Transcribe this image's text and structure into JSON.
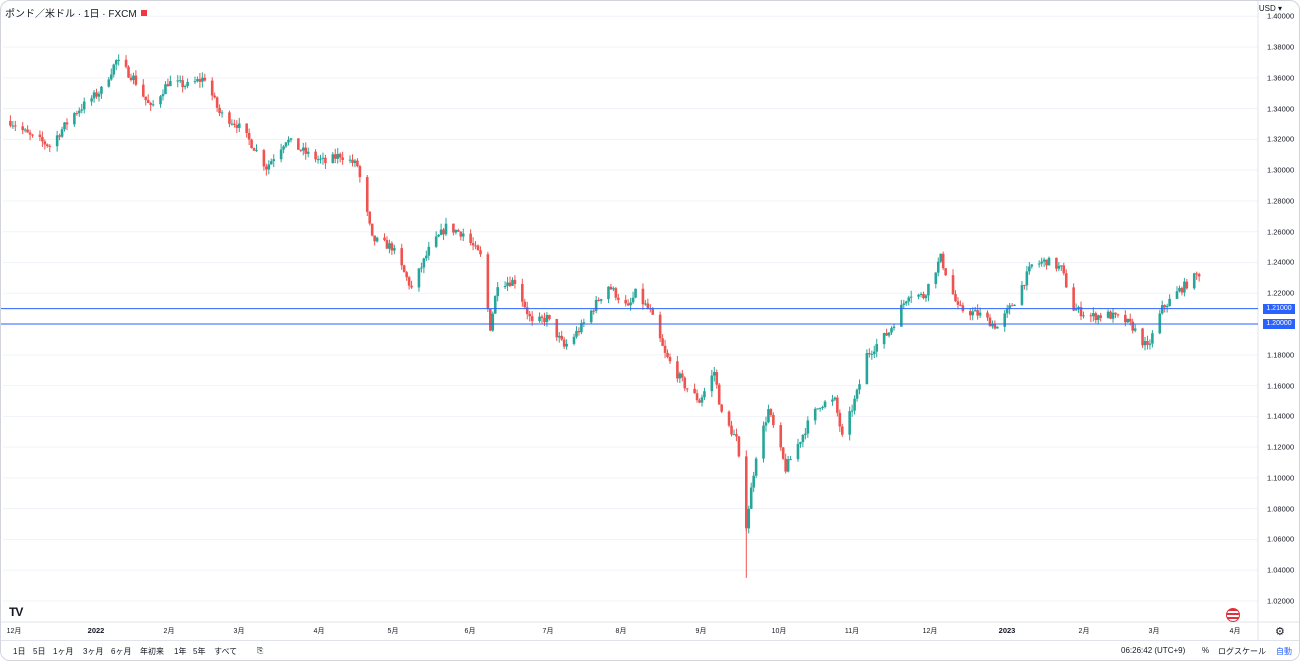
{
  "header": {
    "symbol_title": "ポンド／米ドル · 1日 · FXCM",
    "currency": "USD"
  },
  "toolbar": {
    "ranges": [
      "1日",
      "5日",
      "1ヶ月",
      "3ヶ月",
      "6ヶ月",
      "年初来",
      "1年",
      "5年",
      "すべて"
    ],
    "compare_icon": "calendar-range-icon",
    "time": "06:26:42 (UTC+9)",
    "percent": "%",
    "log_scale": "ログスケール",
    "auto": "自動"
  },
  "brand": {
    "logo": "TV"
  },
  "colors": {
    "up": "#26a69a",
    "down": "#ef5350",
    "hline": "#2962ff",
    "grid": "#f0f3fa"
  },
  "chart_data": {
    "type": "candlestick",
    "title": "ポンド／米ドル · 1日 · FXCM",
    "y_axis": {
      "ticks": [
        "1.40000",
        "1.38000",
        "1.36000",
        "1.34000",
        "1.32000",
        "1.30000",
        "1.28000",
        "1.26000",
        "1.24000",
        "1.22000",
        "1.20000",
        "1.18000",
        "1.16000",
        "1.14000",
        "1.12000",
        "1.10000",
        "1.08000",
        "1.06000",
        "1.04000",
        "1.02000"
      ],
      "range": [
        1.007,
        1.408
      ]
    },
    "x_axis": {
      "ticks": [
        "12月",
        "2022",
        "2月",
        "3月",
        "4月",
        "5月",
        "6月",
        "7月",
        "8月",
        "9月",
        "10月",
        "11月",
        "12月",
        "2023",
        "2月",
        "3月",
        "4月"
      ]
    },
    "horizontal_lines": [
      {
        "label": "1.21000",
        "value": 1.21
      },
      {
        "label": "1.20000",
        "value": 1.2
      }
    ],
    "anchors": [
      [
        "2021-12-01",
        1.332
      ],
      [
        "2021-12-09",
        1.322
      ],
      [
        "2021-12-17",
        1.316
      ],
      [
        "2021-12-27",
        1.337
      ],
      [
        "2022-01-07",
        1.352
      ],
      [
        "2022-01-13",
        1.371
      ],
      [
        "2022-01-20",
        1.36
      ],
      [
        "2022-01-27",
        1.34
      ],
      [
        "2022-02-03",
        1.357
      ],
      [
        "2022-02-11",
        1.355
      ],
      [
        "2022-02-18",
        1.36
      ],
      [
        "2022-02-24",
        1.337
      ],
      [
        "2022-03-03",
        1.33
      ],
      [
        "2022-03-10",
        1.315
      ],
      [
        "2022-03-15",
        1.302
      ],
      [
        "2022-03-23",
        1.32
      ],
      [
        "2022-03-31",
        1.311
      ],
      [
        "2022-04-08",
        1.305
      ],
      [
        "2022-04-14",
        1.31
      ],
      [
        "2022-04-21",
        1.303
      ],
      [
        "2022-04-27",
        1.255
      ],
      [
        "2022-05-05",
        1.25
      ],
      [
        "2022-05-13",
        1.223
      ],
      [
        "2022-05-20",
        1.248
      ],
      [
        "2022-05-27",
        1.263
      ],
      [
        "2022-06-03",
        1.259
      ],
      [
        "2022-06-10",
        1.244
      ],
      [
        "2022-06-14",
        1.198
      ],
      [
        "2022-06-17",
        1.227
      ],
      [
        "2022-06-24",
        1.228
      ],
      [
        "2022-07-01",
        1.2
      ],
      [
        "2022-07-07",
        1.204
      ],
      [
        "2022-07-14",
        1.185
      ],
      [
        "2022-07-21",
        1.198
      ],
      [
        "2022-07-28",
        1.216
      ],
      [
        "2022-08-01",
        1.225
      ],
      [
        "2022-08-09",
        1.21
      ],
      [
        "2022-08-12",
        1.22
      ],
      [
        "2022-08-18",
        1.208
      ],
      [
        "2022-08-24",
        1.18
      ],
      [
        "2022-09-01",
        1.16
      ],
      [
        "2022-09-07",
        1.15
      ],
      [
        "2022-09-13",
        1.169
      ],
      [
        "2022-09-16",
        1.141
      ],
      [
        "2022-09-22",
        1.125
      ],
      [
        "2022-09-26",
        1.07
      ],
      [
        "2022-09-30",
        1.115
      ],
      [
        "2022-10-05",
        1.144
      ],
      [
        "2022-10-12",
        1.106
      ],
      [
        "2022-10-18",
        1.125
      ],
      [
        "2022-10-21",
        1.135
      ],
      [
        "2022-10-26",
        1.148
      ],
      [
        "2022-11-01",
        1.15
      ],
      [
        "2022-11-04",
        1.126
      ],
      [
        "2022-11-10",
        1.155
      ],
      [
        "2022-11-14",
        1.18
      ],
      [
        "2022-11-23",
        1.195
      ],
      [
        "2022-12-01",
        1.22
      ],
      [
        "2022-12-07",
        1.218
      ],
      [
        "2022-12-14",
        1.243
      ],
      [
        "2022-12-21",
        1.21
      ],
      [
        "2022-12-30",
        1.206
      ],
      [
        "2023-01-06",
        1.198
      ],
      [
        "2023-01-13",
        1.215
      ],
      [
        "2023-01-20",
        1.238
      ],
      [
        "2023-01-26",
        1.241
      ],
      [
        "2023-02-01",
        1.236
      ],
      [
        "2023-02-06",
        1.21
      ],
      [
        "2023-02-13",
        1.205
      ],
      [
        "2023-02-20",
        1.206
      ],
      [
        "2023-02-27",
        1.202
      ],
      [
        "2023-03-02",
        1.198
      ],
      [
        "2023-03-08",
        1.184
      ],
      [
        "2023-03-14",
        1.21
      ],
      [
        "2023-03-21",
        1.222
      ],
      [
        "2023-03-24",
        1.226
      ],
      [
        "2023-03-29",
        1.233
      ]
    ]
  }
}
